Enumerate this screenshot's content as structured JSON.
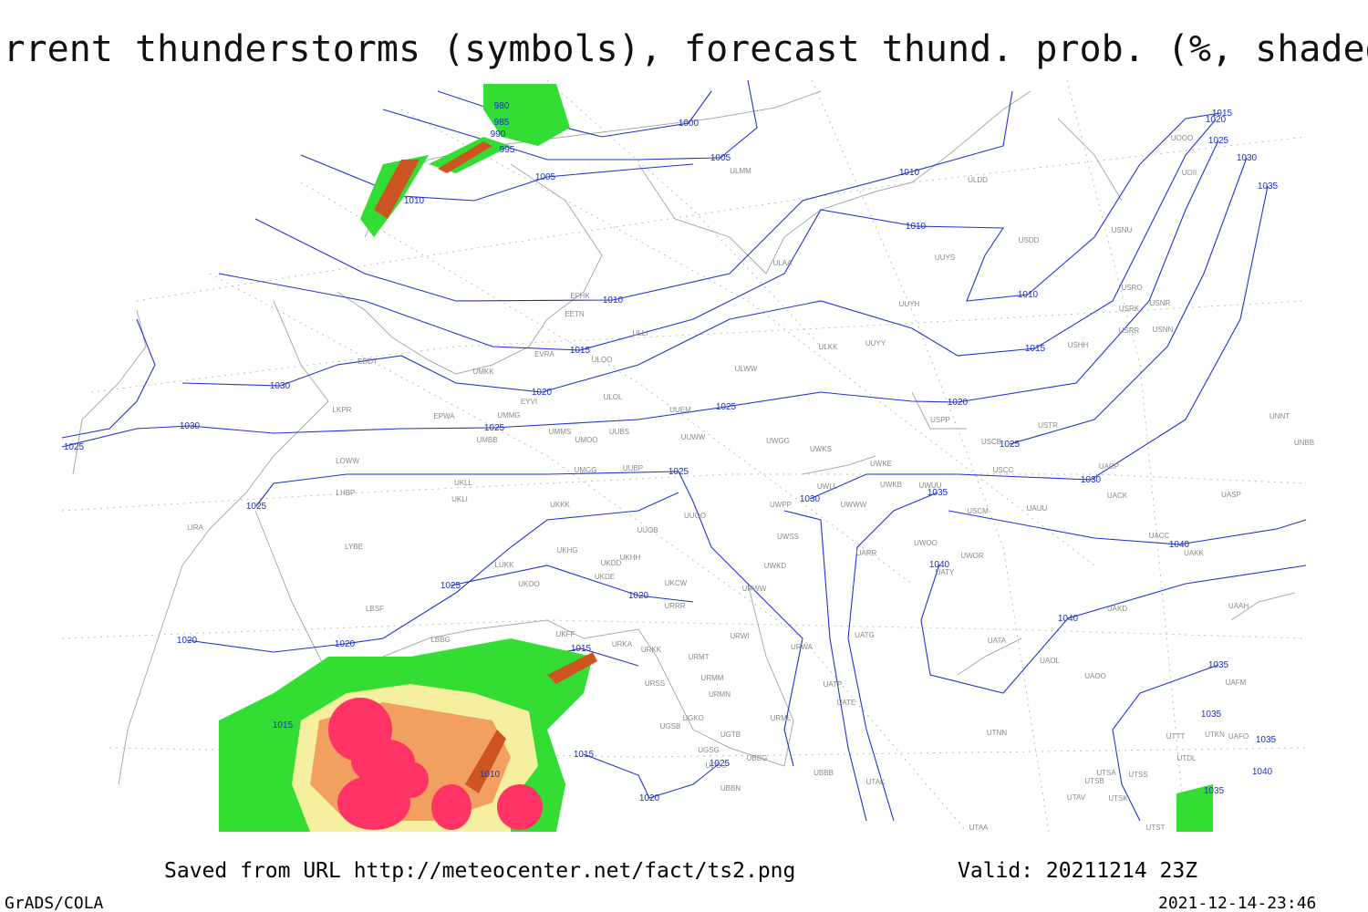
{
  "header": {
    "title": "Current thunderstorms (symbols), forecast thund. prob. (%, shaded)"
  },
  "footer": {
    "source": "Saved from URL http://meteocenter.net/fact/ts2.png",
    "valid": "Valid: 20211214 23Z",
    "software": "GrADS/COLA",
    "timestamp": "2021-12-14-23:46"
  },
  "isobar_labels": [
    "980",
    "985",
    "990",
    "995",
    "1000",
    "1005",
    "1005",
    "1010",
    "1010",
    "1010",
    "1010",
    "1010",
    "1015",
    "1020",
    "1025",
    "1030",
    "1035",
    "1015",
    "1015",
    "1020",
    "1020",
    "1025",
    "1025",
    "1025",
    "1030",
    "1030",
    "1025",
    "1025",
    "1030",
    "1030",
    "1035",
    "1025",
    "1040",
    "1040",
    "1025",
    "1020",
    "1040",
    "1020",
    "1020",
    "1015",
    "1035",
    "1035",
    "1015",
    "1035",
    "1015",
    "1025",
    "1010",
    "1040",
    "1035",
    "1020"
  ],
  "stations": [
    "ULMM",
    "ULDD",
    "USDD",
    "USNU",
    "UUYS",
    "ULAA",
    "EFHK",
    "EETN",
    "UUYH",
    "USRO",
    "USRK",
    "USNR",
    "UOOO",
    "UOII",
    "ULLI",
    "USRR",
    "USNN",
    "EVRA",
    "ULOO",
    "ULKK",
    "UUYY",
    "USHH",
    "EDDT",
    "UMKK",
    "ULWW",
    "ULOL",
    "EYVI",
    "UUEM",
    "UMMG",
    "EPWA",
    "LKPR",
    "USPP",
    "USTR",
    "UNNT",
    "UMMS",
    "UUBS",
    "UMOO",
    "UUWW",
    "UMBB",
    "UWGG",
    "UWKS",
    "USCB",
    "UNBB",
    "LOWW",
    "UWKE",
    "UMGG",
    "UUBP",
    "USCC",
    "UACP",
    "UKLL",
    "UWLL",
    "UWKB",
    "UWUU",
    "LHBP",
    "UKLI",
    "UACK",
    "UASP",
    "UKKK",
    "UWPP",
    "UWWW",
    "USCM",
    "UAUU",
    "UUOO",
    "LIRA",
    "UUOB",
    "UWSS",
    "UACC",
    "LYBE",
    "UKHG",
    "UKHH",
    "UARR",
    "UWOO",
    "UWOR",
    "UAKK",
    "LUKK",
    "UKDD",
    "UWKD",
    "UATY",
    "UKOO",
    "UKDE",
    "UKCW",
    "URWW",
    "LBSF",
    "URRR",
    "UAKD",
    "UAAH",
    "UKFF",
    "LBBG",
    "URWI",
    "UATG",
    "URKA",
    "URKK",
    "UATA",
    "URMT",
    "URWA",
    "UAOL",
    "URSS",
    "URMM",
    "UATP",
    "UAOO",
    "UAFM",
    "URMN",
    "UATE",
    "UGKO",
    "URML",
    "UTKN",
    "UAFO",
    "UGSB",
    "UGTB",
    "UTNN",
    "UTTT",
    "UGSG",
    "UBBG",
    "UTDL",
    "UDSG",
    "UBBB",
    "UTSA",
    "UTSS",
    "UTAK",
    "UTSB",
    "UBBN",
    "UTAV",
    "UTSK",
    "UTAA",
    "UTST"
  ]
}
